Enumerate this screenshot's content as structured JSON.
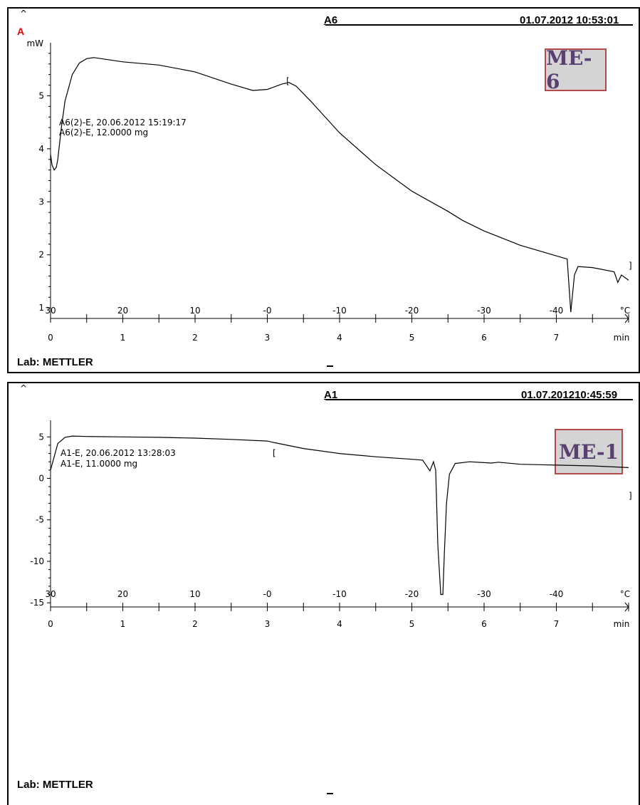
{
  "panels": [
    {
      "title": "A6",
      "datetime": "01.07.2012  10:53:01",
      "corner_label": "A",
      "unit_label": "mW",
      "sample_name": "A6(2)-E, 20.06.2012 15:19:17",
      "sample_mass": "A6(2)-E, 12.0000 mg",
      "badge": "ME-6",
      "lab": "Lab: METTLER",
      "x_unit": "min",
      "temp_unit": "°C",
      "y_ticks": [
        "1",
        "2",
        "3",
        "4",
        "5"
      ],
      "x_ticks": [
        "0",
        "1",
        "2",
        "3",
        "4",
        "5",
        "6",
        "7"
      ],
      "temp_ticks": [
        "30",
        "20",
        "10",
        "-0",
        "-10",
        "-20",
        "-30",
        "-40"
      ]
    },
    {
      "title": "A1",
      "datetime": "01.07.201210:45:59",
      "sample_name": "A1-E, 20.06.2012 13:28:03",
      "sample_mass": "A1-E, 11.0000 mg",
      "badge": "ME-1",
      "lab": "Lab: METTLER",
      "x_unit": "min",
      "temp_unit": "°C",
      "y_ticks": [
        "5",
        "0",
        "-5",
        "-10",
        "-15"
      ],
      "x_ticks": [
        "0",
        "1",
        "2",
        "3",
        "4",
        "5",
        "6",
        "7"
      ],
      "temp_ticks": [
        "30",
        "20",
        "10",
        "-0",
        "-10",
        "-20",
        "-30",
        "-40"
      ]
    }
  ],
  "chart_data": [
    {
      "type": "line",
      "title": "A6",
      "ylabel": "mW",
      "xlabel": "min",
      "secondary_xlabel": "°C",
      "ylim": [
        0.8,
        6.0
      ],
      "xlim": [
        0,
        8.0
      ],
      "series": [
        {
          "x": [
            0,
            0.02,
            0.05,
            0.08,
            0.1,
            0.15,
            0.2,
            0.3,
            0.4,
            0.5,
            0.6,
            0.8,
            1.0,
            1.5,
            2.0,
            2.5,
            2.8,
            3.0,
            3.2,
            3.3,
            3.4,
            3.6,
            4.0,
            4.5,
            5.0,
            5.5,
            5.7,
            6.0,
            6.5,
            7.0,
            7.15,
            7.2,
            7.25,
            7.3,
            7.5,
            7.8,
            7.85,
            7.9,
            8.0
          ],
          "y": [
            3.9,
            3.7,
            3.6,
            3.65,
            3.8,
            4.4,
            4.9,
            5.4,
            5.62,
            5.7,
            5.72,
            5.68,
            5.64,
            5.58,
            5.45,
            5.22,
            5.1,
            5.12,
            5.22,
            5.25,
            5.18,
            4.9,
            4.3,
            3.7,
            3.2,
            2.82,
            2.65,
            2.45,
            2.18,
            1.98,
            1.92,
            0.92,
            1.62,
            1.78,
            1.76,
            1.68,
            1.48,
            1.62,
            1.52
          ]
        }
      ],
      "annotations": [
        "A6(2)-E, 20.06.2012 15:19:17",
        "A6(2)-E, 12.0000 mg",
        "ME-6"
      ]
    },
    {
      "type": "line",
      "title": "A1",
      "ylabel": "",
      "xlabel": "min",
      "secondary_xlabel": "°C",
      "ylim": [
        -15.5,
        7.0
      ],
      "xlim": [
        0,
        8.0
      ],
      "series": [
        {
          "x": [
            0,
            0.05,
            0.1,
            0.2,
            0.3,
            0.5,
            1.0,
            1.5,
            2.0,
            2.5,
            3.0,
            3.1,
            3.5,
            4.0,
            4.5,
            5.0,
            5.15,
            5.25,
            5.3,
            5.33,
            5.36,
            5.4,
            5.43,
            5.45,
            5.48,
            5.52,
            5.6,
            5.8,
            6.0,
            6.1,
            6.2,
            6.5,
            7.0,
            7.5,
            8.0
          ],
          "y": [
            1.0,
            2.6,
            4.2,
            4.95,
            5.1,
            5.05,
            5.0,
            4.95,
            4.85,
            4.7,
            4.5,
            4.3,
            3.6,
            3.0,
            2.6,
            2.3,
            2.2,
            0.9,
            2.0,
            1.0,
            -8.0,
            -14.0,
            -14.0,
            -9.0,
            -3.0,
            0.5,
            1.8,
            2.0,
            1.9,
            1.85,
            1.95,
            1.7,
            1.6,
            1.5,
            1.3
          ]
        }
      ],
      "annotations": [
        "A1-E, 20.06.2012 13:28:03",
        "A1-E, 11.0000 mg",
        "ME-1"
      ]
    }
  ]
}
